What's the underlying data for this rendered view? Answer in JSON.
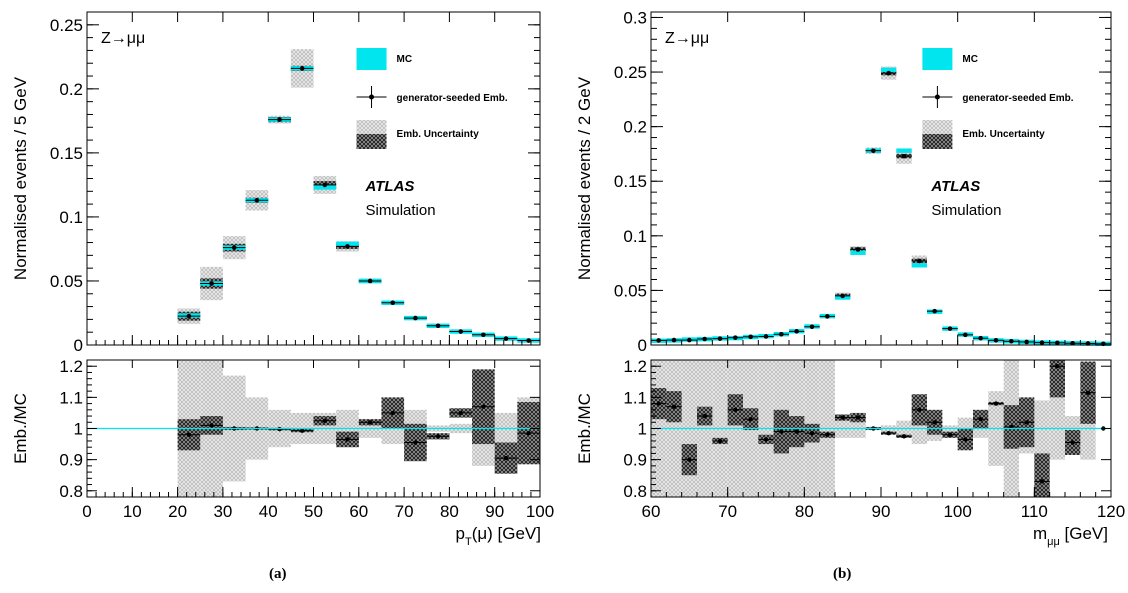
{
  "colors": {
    "mc": "#00e5ee",
    "emb_marker": "#000000",
    "emb_unc_light": "#c4c4c4",
    "emb_unc_dark": "#333333",
    "ref_line": "#00e5ee"
  },
  "captions": [
    "(a)",
    "(b)"
  ],
  "chart_data": [
    {
      "type": "histogram",
      "process_label": "Z→μμ",
      "atlas_label": "ATLAS",
      "atlas_sublabel": "Simulation",
      "legend": {
        "placement": "top-right",
        "entries": [
          "MC",
          "generator-seeded Emb.",
          "Emb. Uncertainty"
        ]
      },
      "main": {
        "ylabel": "Normalised events / 5 GeV",
        "ylim": [
          0,
          0.26
        ],
        "yticks": [
          0,
          0.05,
          0.1,
          0.15,
          0.2,
          0.25
        ],
        "ytick_labels": [
          "0",
          "0.05",
          "0.1",
          "0.15",
          "0.2",
          "0.25"
        ]
      },
      "ratio": {
        "ylabel": "Emb./MC",
        "ylim": [
          0.78,
          1.22
        ],
        "yticks": [
          0.8,
          0.9,
          1.0,
          1.1,
          1.2
        ],
        "ytick_labels": [
          "0.8",
          "0.9",
          "1",
          "1.1",
          "1.2"
        ],
        "reference": 1.0
      },
      "xlabel": "p_T(μ) [GeV]",
      "xlim": [
        0,
        100
      ],
      "xticks": [
        0,
        10,
        20,
        30,
        40,
        50,
        60,
        70,
        80,
        90,
        100
      ],
      "xtick_labels": [
        "0",
        "10",
        "20",
        "30",
        "40",
        "50",
        "60",
        "70",
        "80",
        "90",
        "100"
      ],
      "bins": [
        {
          "lo": 20,
          "hi": 25,
          "emb": 0.0225,
          "mc": 0.023,
          "emb_unc": 0.0035,
          "emb_unc_total": 0.006,
          "ratio": 0.98,
          "ratio_unc": 0.05,
          "ratio_unc_total": 0.24
        },
        {
          "lo": 25,
          "hi": 30,
          "emb": 0.048,
          "mc": 0.048,
          "emb_unc": 0.004,
          "emb_unc_total": 0.013,
          "ratio": 1.01,
          "ratio_unc": 0.03,
          "ratio_unc_total": 0.24
        },
        {
          "lo": 30,
          "hi": 35,
          "emb": 0.076,
          "mc": 0.076,
          "emb_unc": 0.003,
          "emb_unc_total": 0.009,
          "ratio": 1.0,
          "ratio_unc": 0.005,
          "ratio_unc_total": 0.17
        },
        {
          "lo": 35,
          "hi": 40,
          "emb": 0.113,
          "mc": 0.113,
          "emb_unc": 0.002,
          "emb_unc_total": 0.008,
          "ratio": 1.0,
          "ratio_unc": 0.004,
          "ratio_unc_total": 0.1
        },
        {
          "lo": 40,
          "hi": 45,
          "emb": 0.176,
          "mc": 0.176,
          "emb_unc": 0.002,
          "emb_unc_total": 0.003,
          "ratio": 0.998,
          "ratio_unc": 0.004,
          "ratio_unc_total": 0.06
        },
        {
          "lo": 45,
          "hi": 50,
          "emb": 0.216,
          "mc": 0.216,
          "emb_unc": 0.002,
          "emb_unc_total": 0.015,
          "ratio": 0.993,
          "ratio_unc": 0.005,
          "ratio_unc_total": 0.05
        },
        {
          "lo": 50,
          "hi": 55,
          "emb": 0.125,
          "mc": 0.123,
          "emb_unc": 0.003,
          "emb_unc_total": 0.007,
          "ratio": 1.025,
          "ratio_unc": 0.015,
          "ratio_unc_total": 0.05
        },
        {
          "lo": 55,
          "hi": 60,
          "emb": 0.077,
          "mc": 0.079,
          "emb_unc": 0.002,
          "emb_unc_total": 0.004,
          "ratio": 0.965,
          "ratio_unc": 0.025,
          "ratio_unc_total": 0.06
        },
        {
          "lo": 60,
          "hi": 65,
          "emb": 0.05,
          "mc": 0.05,
          "emb_unc": 0.001,
          "emb_unc_total": 0.002,
          "ratio": 1.02,
          "ratio_unc": 0.01,
          "ratio_unc_total": 0.03
        },
        {
          "lo": 65,
          "hi": 70,
          "emb": 0.033,
          "mc": 0.033,
          "emb_unc": 0.0015,
          "emb_unc_total": 0.0015,
          "ratio": 1.05,
          "ratio_unc": 0.05,
          "ratio_unc_total": 0.05
        },
        {
          "lo": 70,
          "hi": 75,
          "emb": 0.021,
          "mc": 0.021,
          "emb_unc": 0.001,
          "emb_unc_total": 0.001,
          "ratio": 0.955,
          "ratio_unc": 0.06,
          "ratio_unc_total": 0.06
        },
        {
          "lo": 75,
          "hi": 80,
          "emb": 0.015,
          "mc": 0.015,
          "emb_unc": 0.0008,
          "emb_unc_total": 0.0008,
          "ratio": 0.975,
          "ratio_unc": 0.01,
          "ratio_unc_total": 0.01
        },
        {
          "lo": 80,
          "hi": 85,
          "emb": 0.0105,
          "mc": 0.0105,
          "emb_unc": 0.0006,
          "emb_unc_total": 0.0006,
          "ratio": 1.05,
          "ratio_unc": 0.015,
          "ratio_unc_total": 0.015
        },
        {
          "lo": 85,
          "hi": 90,
          "emb": 0.008,
          "mc": 0.008,
          "emb_unc": 0.0005,
          "emb_unc_total": 0.0005,
          "ratio": 1.07,
          "ratio_unc": 0.12,
          "ratio_unc_total": 0.12
        },
        {
          "lo": 90,
          "hi": 95,
          "emb": 0.005,
          "mc": 0.005,
          "emb_unc": 0.0004,
          "emb_unc_total": 0.0004,
          "ratio": 0.905,
          "ratio_unc": 0.05,
          "ratio_unc_total": 0.05
        },
        {
          "lo": 95,
          "hi": 100,
          "emb": 0.0035,
          "mc": 0.0035,
          "emb_unc": 0.0003,
          "emb_unc_total": 0.0003,
          "ratio": 0.985,
          "ratio_unc": 0.1,
          "ratio_unc_total": 0.1
        }
      ]
    },
    {
      "type": "histogram",
      "process_label": "Z→μμ",
      "atlas_label": "ATLAS",
      "atlas_sublabel": "Simulation",
      "legend": {
        "placement": "top-right",
        "entries": [
          "MC",
          "generator-seeded Emb.",
          "Emb. Uncertainty"
        ]
      },
      "main": {
        "ylabel": "Normalised events / 2 GeV",
        "ylim": [
          0,
          0.305
        ],
        "yticks": [
          0,
          0.05,
          0.1,
          0.15,
          0.2,
          0.25,
          0.3
        ],
        "ytick_labels": [
          "0",
          "0.05",
          "0.1",
          "0.15",
          "0.2",
          "0.25",
          "0.3"
        ]
      },
      "ratio": {
        "ylabel": "Emb./MC",
        "ylim": [
          0.78,
          1.22
        ],
        "yticks": [
          0.8,
          0.9,
          1.0,
          1.1,
          1.2
        ],
        "ytick_labels": [
          "0.8",
          "0.9",
          "1",
          "1.1",
          "1.2"
        ],
        "reference": 1.0
      },
      "xlabel": "m_μμ [GeV]",
      "xlim": [
        60,
        120
      ],
      "xticks": [
        60,
        70,
        80,
        90,
        100,
        110,
        120
      ],
      "xtick_labels": [
        "60",
        "70",
        "80",
        "90",
        "100",
        "110",
        "120"
      ],
      "bins": [
        {
          "lo": 60,
          "hi": 62,
          "emb": 0.0042,
          "mc": 0.0039,
          "emb_unc": 0.0003,
          "emb_unc_total": 0.001,
          "ratio": 1.08,
          "ratio_unc": 0.05,
          "ratio_unc_total": 0.25
        },
        {
          "lo": 62,
          "hi": 64,
          "emb": 0.0045,
          "mc": 0.0042,
          "emb_unc": 0.0003,
          "emb_unc_total": 0.001,
          "ratio": 1.07,
          "ratio_unc": 0.05,
          "ratio_unc_total": 0.25
        },
        {
          "lo": 64,
          "hi": 66,
          "emb": 0.0045,
          "mc": 0.005,
          "emb_unc": 0.0003,
          "emb_unc_total": 0.001,
          "ratio": 0.9,
          "ratio_unc": 0.05,
          "ratio_unc_total": 0.25
        },
        {
          "lo": 66,
          "hi": 68,
          "emb": 0.0055,
          "mc": 0.0053,
          "emb_unc": 0.0003,
          "emb_unc_total": 0.001,
          "ratio": 1.04,
          "ratio_unc": 0.03,
          "ratio_unc_total": 0.25
        },
        {
          "lo": 68,
          "hi": 70,
          "emb": 0.0058,
          "mc": 0.006,
          "emb_unc": 0.0003,
          "emb_unc_total": 0.001,
          "ratio": 0.96,
          "ratio_unc": 0.01,
          "ratio_unc_total": 0.25
        },
        {
          "lo": 70,
          "hi": 72,
          "emb": 0.0067,
          "mc": 0.0063,
          "emb_unc": 0.0003,
          "emb_unc_total": 0.001,
          "ratio": 1.06,
          "ratio_unc": 0.05,
          "ratio_unc_total": 0.25
        },
        {
          "lo": 72,
          "hi": 74,
          "emb": 0.0075,
          "mc": 0.0073,
          "emb_unc": 0.0003,
          "emb_unc_total": 0.001,
          "ratio": 1.03,
          "ratio_unc": 0.035,
          "ratio_unc_total": 0.25
        },
        {
          "lo": 74,
          "hi": 76,
          "emb": 0.0078,
          "mc": 0.0081,
          "emb_unc": 0.0003,
          "emb_unc_total": 0.001,
          "ratio": 0.965,
          "ratio_unc": 0.015,
          "ratio_unc_total": 0.25
        },
        {
          "lo": 76,
          "hi": 78,
          "emb": 0.0098,
          "mc": 0.0099,
          "emb_unc": 0.0003,
          "emb_unc_total": 0.001,
          "ratio": 0.99,
          "ratio_unc": 0.07,
          "ratio_unc_total": 0.25
        },
        {
          "lo": 78,
          "hi": 80,
          "emb": 0.0125,
          "mc": 0.0126,
          "emb_unc": 0.0004,
          "emb_unc_total": 0.0015,
          "ratio": 0.99,
          "ratio_unc": 0.05,
          "ratio_unc_total": 0.25
        },
        {
          "lo": 80,
          "hi": 82,
          "emb": 0.0167,
          "mc": 0.017,
          "emb_unc": 0.0005,
          "emb_unc_total": 0.0015,
          "ratio": 0.985,
          "ratio_unc": 0.03,
          "ratio_unc_total": 0.25
        },
        {
          "lo": 82,
          "hi": 84,
          "emb": 0.0262,
          "mc": 0.0265,
          "emb_unc": 0.0008,
          "emb_unc_total": 0.002,
          "ratio": 0.98,
          "ratio_unc": 0.01,
          "ratio_unc_total": 0.25
        },
        {
          "lo": 84,
          "hi": 86,
          "emb": 0.045,
          "mc": 0.0435,
          "emb_unc": 0.002,
          "emb_unc_total": 0.003,
          "ratio": 1.035,
          "ratio_unc": 0.01,
          "ratio_unc_total": 0.03
        },
        {
          "lo": 86,
          "hi": 88,
          "emb": 0.0875,
          "mc": 0.0845,
          "emb_unc": 0.002,
          "emb_unc_total": 0.003,
          "ratio": 1.035,
          "ratio_unc": 0.015,
          "ratio_unc_total": 0.03
        },
        {
          "lo": 88,
          "hi": 90,
          "emb": 0.178,
          "mc": 0.178,
          "emb_unc": 0.002,
          "emb_unc_total": 0.003,
          "ratio": 1.0,
          "ratio_unc": 0.005,
          "ratio_unc_total": 0.005
        },
        {
          "lo": 90,
          "hi": 92,
          "emb": 0.249,
          "mc": 0.252,
          "emb_unc": 0.002,
          "emb_unc_total": 0.006,
          "ratio": 0.985,
          "ratio_unc": 0.005,
          "ratio_unc_total": 0.01
        },
        {
          "lo": 92,
          "hi": 94,
          "emb": 0.173,
          "mc": 0.178,
          "emb_unc": 0.002,
          "emb_unc_total": 0.007,
          "ratio": 0.975,
          "ratio_unc": 0.005,
          "ratio_unc_total": 0.025
        },
        {
          "lo": 94,
          "hi": 96,
          "emb": 0.077,
          "mc": 0.073,
          "emb_unc": 0.002,
          "emb_unc_total": 0.005,
          "ratio": 1.06,
          "ratio_unc": 0.05,
          "ratio_unc_total": 0.05
        },
        {
          "lo": 96,
          "hi": 98,
          "emb": 0.031,
          "mc": 0.0305,
          "emb_unc": 0.001,
          "emb_unc_total": 0.001,
          "ratio": 1.02,
          "ratio_unc": 0.04,
          "ratio_unc_total": 0.04
        },
        {
          "lo": 98,
          "hi": 100,
          "emb": 0.015,
          "mc": 0.015,
          "emb_unc": 0.0006,
          "emb_unc_total": 0.0006,
          "ratio": 0.98,
          "ratio_unc": 0.01,
          "ratio_unc_total": 0.01
        },
        {
          "lo": 100,
          "hi": 102,
          "emb": 0.0093,
          "mc": 0.0096,
          "emb_unc": 0.0005,
          "emb_unc_total": 0.0005,
          "ratio": 0.965,
          "ratio_unc": 0.035,
          "ratio_unc_total": 0.035
        },
        {
          "lo": 102,
          "hi": 104,
          "emb": 0.0062,
          "mc": 0.0062,
          "emb_unc": 0.0004,
          "emb_unc_total": 0.0004,
          "ratio": 1.03,
          "ratio_unc": 0.03,
          "ratio_unc_total": 0.03
        },
        {
          "lo": 104,
          "hi": 106,
          "emb": 0.0043,
          "mc": 0.0042,
          "emb_unc": 0.0003,
          "emb_unc_total": 0.0003,
          "ratio": 1.08,
          "ratio_unc": 0.005,
          "ratio_unc_total": 0.12
        },
        {
          "lo": 106,
          "hi": 108,
          "emb": 0.0034,
          "mc": 0.0034,
          "emb_unc": 0.0003,
          "emb_unc_total": 0.0003,
          "ratio": 1.005,
          "ratio_unc": 0.07,
          "ratio_unc_total": 0.25
        },
        {
          "lo": 108,
          "hi": 110,
          "emb": 0.0028,
          "mc": 0.0028,
          "emb_unc": 0.0003,
          "emb_unc_total": 0.0003,
          "ratio": 1.02,
          "ratio_unc": 0.08,
          "ratio_unc_total": 0.08
        },
        {
          "lo": 110,
          "hi": 112,
          "emb": 0.0022,
          "mc": 0.0022,
          "emb_unc": 0.0002,
          "emb_unc_total": 0.0002,
          "ratio": 0.83,
          "ratio_unc": 0.09,
          "ratio_unc_total": 0.09
        },
        {
          "lo": 112,
          "hi": 114,
          "emb": 0.002,
          "mc": 0.002,
          "emb_unc": 0.0002,
          "emb_unc_total": 0.0002,
          "ratio": 1.2,
          "ratio_unc": 0.1,
          "ratio_unc_total": 0.1
        },
        {
          "lo": 114,
          "hi": 116,
          "emb": 0.0016,
          "mc": 0.0016,
          "emb_unc": 0.0002,
          "emb_unc_total": 0.0002,
          "ratio": 0.955,
          "ratio_unc": 0.04,
          "ratio_unc_total": 0.04
        },
        {
          "lo": 116,
          "hi": 118,
          "emb": 0.0014,
          "mc": 0.0014,
          "emb_unc": 0.0002,
          "emb_unc_total": 0.0002,
          "ratio": 1.115,
          "ratio_unc": 0.1,
          "ratio_unc_total": 0.1
        },
        {
          "lo": 118,
          "hi": 120,
          "emb": 0.0011,
          "mc": 0.0011,
          "emb_unc": 0.0002,
          "emb_unc_total": 0.0002,
          "ratio": 1.0,
          "ratio_unc": 0.0,
          "ratio_unc_total": 0.0
        }
      ]
    }
  ]
}
